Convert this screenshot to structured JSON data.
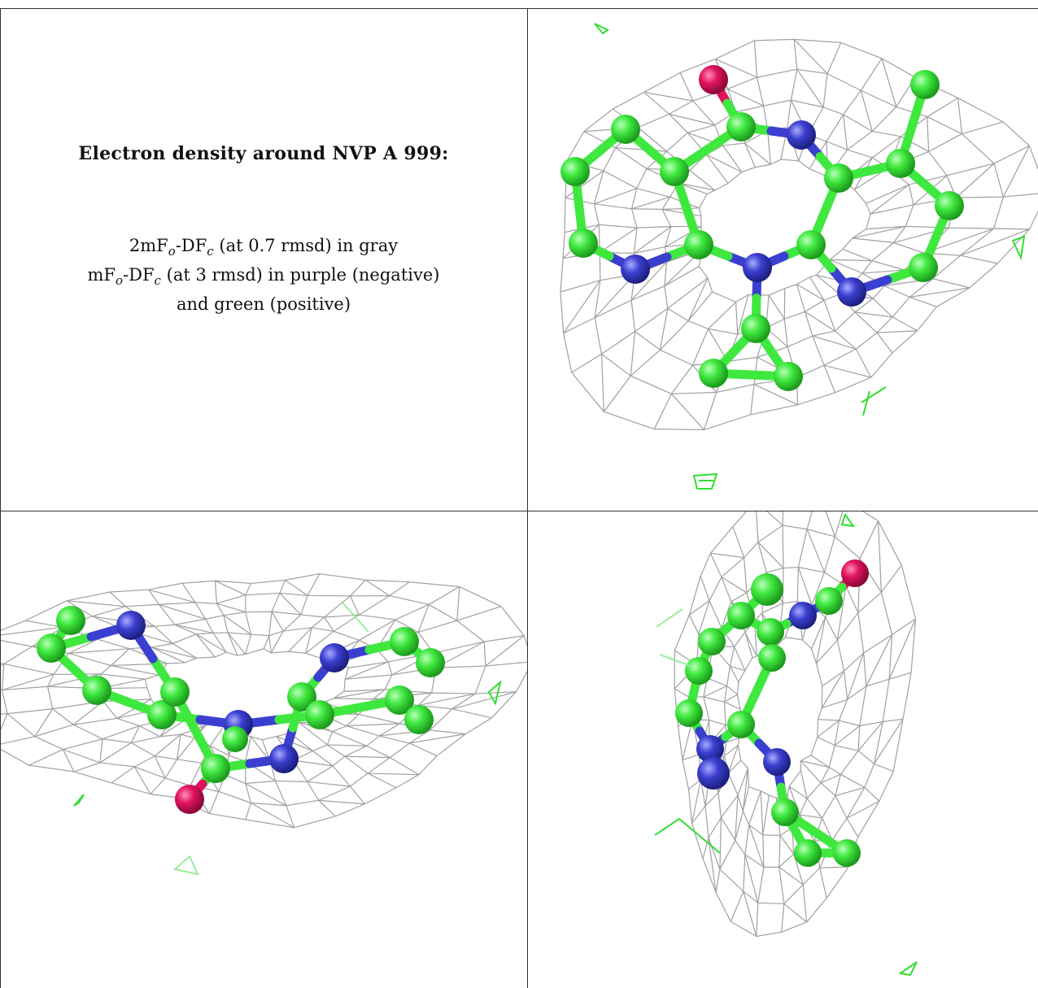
{
  "caption": {
    "title": "Electron density around NVP A 999:",
    "line1_prefix": "2mF",
    "line1_sub1": "o",
    "line1_mid": "-DF",
    "line1_sub2": "c",
    "line1_suffix": " (at 0.7 rmsd) in gray",
    "line2_prefix": "mF",
    "line2_sub1": "o",
    "line2_mid": "-DF",
    "line2_sub2": "c",
    "line2_suffix": " (at 3 rmsd) in purple (negative)",
    "line3": "and green (positive)"
  },
  "colors": {
    "carbon": "#3fe83f",
    "nitrogen": "#3b3fd0",
    "oxygen": "#e0125f",
    "mesh": "#9a9a9a",
    "positive_density": "#33dd33",
    "border": "#333333"
  },
  "panels": [
    {
      "id": "top-right",
      "view": "front"
    },
    {
      "id": "bottom-left",
      "view": "side"
    },
    {
      "id": "bottom-right",
      "view": "edge"
    }
  ]
}
